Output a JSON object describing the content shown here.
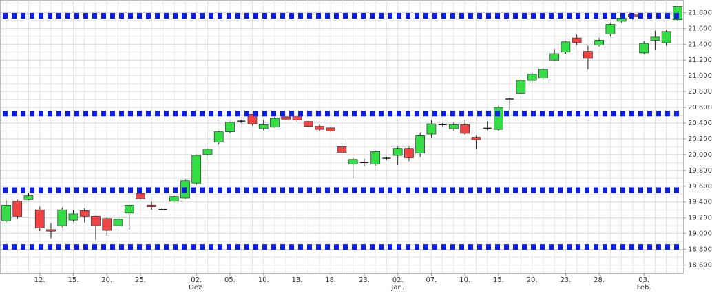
{
  "chart_data": {
    "type": "candlestick",
    "categories": [
      null,
      null,
      null,
      "12.",
      null,
      null,
      "15.",
      null,
      null,
      "20.",
      null,
      null,
      "25.",
      null,
      null,
      null,
      null,
      "02.",
      null,
      null,
      "05.",
      null,
      null,
      "10.",
      null,
      null,
      "13.",
      null,
      null,
      "18.",
      null,
      null,
      "23.",
      null,
      null,
      "02.",
      null,
      null,
      "07.",
      null,
      null,
      "10.",
      null,
      null,
      "15.",
      null,
      null,
      "20.",
      null,
      null,
      "23.",
      null,
      null,
      "28.",
      null,
      null,
      null,
      "03.",
      null,
      null,
      null
    ],
    "months": [
      null,
      null,
      null,
      null,
      null,
      null,
      null,
      null,
      null,
      null,
      null,
      null,
      null,
      null,
      null,
      null,
      null,
      "Dez.",
      null,
      null,
      null,
      null,
      null,
      null,
      null,
      null,
      null,
      null,
      null,
      null,
      null,
      null,
      null,
      null,
      null,
      "Jan.",
      null,
      null,
      null,
      null,
      null,
      null,
      null,
      null,
      null,
      null,
      null,
      null,
      null,
      null,
      null,
      null,
      null,
      null,
      null,
      null,
      null,
      "Feb.",
      null,
      null,
      null
    ],
    "open": [
      19.16,
      19.41,
      19.43,
      19.3,
      19.05,
      19.1,
      19.17,
      19.29,
      19.22,
      19.19,
      19.1,
      19.26,
      19.51,
      19.36,
      19.31,
      19.41,
      19.45,
      19.64,
      20.0,
      20.16,
      20.29,
      20.42,
      20.51,
      20.33,
      20.35,
      20.48,
      20.49,
      20.42,
      20.36,
      20.34,
      20.1,
      19.88,
      19.9,
      19.88,
      19.95,
      19.99,
      20.08,
      20.02,
      20.26,
      20.38,
      20.33,
      20.38,
      20.22,
      20.33,
      20.32,
      20.7,
      20.78,
      20.94,
      20.97,
      21.2,
      21.3,
      21.48,
      21.31,
      21.39,
      21.53,
      21.69,
      21.78,
      21.29,
      21.45,
      21.42,
      21.71
    ],
    "high": [
      19.42,
      19.43,
      19.52,
      19.34,
      19.13,
      19.33,
      19.3,
      19.32,
      19.23,
      19.2,
      19.19,
      19.38,
      19.53,
      19.4,
      19.33,
      19.48,
      19.69,
      20.0,
      20.08,
      20.3,
      20.42,
      20.44,
      20.51,
      20.44,
      20.48,
      20.49,
      20.5,
      20.43,
      20.38,
      20.36,
      20.17,
      19.96,
      19.95,
      20.05,
      19.97,
      20.1,
      20.1,
      20.28,
      20.44,
      20.4,
      20.41,
      20.44,
      20.24,
      20.42,
      20.62,
      20.72,
      20.95,
      21.05,
      21.09,
      21.34,
      21.44,
      21.52,
      21.38,
      21.48,
      21.67,
      21.77,
      21.79,
      21.44,
      21.57,
      21.58,
      21.89
    ],
    "low": [
      19.14,
      19.18,
      19.42,
      19.03,
      18.94,
      19.08,
      19.15,
      19.14,
      18.92,
      18.97,
      18.96,
      19.05,
      19.43,
      19.3,
      19.17,
      19.4,
      19.44,
      19.62,
      19.99,
      20.13,
      20.27,
      20.4,
      20.37,
      20.31,
      20.34,
      20.44,
      20.41,
      20.35,
      20.3,
      20.29,
      20.01,
      19.7,
      19.85,
      19.86,
      19.93,
      19.87,
      19.92,
      19.97,
      20.22,
      20.36,
      20.3,
      20.25,
      20.07,
      20.31,
      20.3,
      20.56,
      20.76,
      20.91,
      20.96,
      21.19,
      21.28,
      21.39,
      21.08,
      21.37,
      21.5,
      21.67,
      21.71,
      21.27,
      21.33,
      21.38,
      21.7
    ],
    "close": [
      19.36,
      19.22,
      19.48,
      19.07,
      19.03,
      19.3,
      19.25,
      19.22,
      19.1,
      19.04,
      19.18,
      19.36,
      19.44,
      19.34,
      19.3,
      19.47,
      19.67,
      19.99,
      20.07,
      20.29,
      20.41,
      20.43,
      20.39,
      20.38,
      20.46,
      20.45,
      20.44,
      20.36,
      20.32,
      20.3,
      20.03,
      19.94,
      19.9,
      20.04,
      19.96,
      20.08,
      19.96,
      20.24,
      20.39,
      20.38,
      20.38,
      20.27,
      20.19,
      20.34,
      20.6,
      20.71,
      20.94,
      21.02,
      21.08,
      21.28,
      21.43,
      21.42,
      21.22,
      21.45,
      21.65,
      21.73,
      21.75,
      21.41,
      21.49,
      21.56,
      21.88
    ],
    "up_color": "#33dd44",
    "down_color": "#ee4444",
    "level_color": "#0a1ee6",
    "levels": [
      21.76,
      20.52,
      19.55,
      18.83
    ],
    "ylim": [
      18.5,
      21.96
    ],
    "yticks": [
      {
        "value": 18.6,
        "label": "18.600"
      },
      {
        "value": 18.8,
        "label": "18.800"
      },
      {
        "value": 19.0,
        "label": "19.000"
      },
      {
        "value": 19.2,
        "label": "19.200"
      },
      {
        "value": 19.4,
        "label": "19.400"
      },
      {
        "value": 19.6,
        "label": "19.600"
      },
      {
        "value": 19.8,
        "label": "19.800"
      },
      {
        "value": 20.0,
        "label": "20.000"
      },
      {
        "value": 20.2,
        "label": "20.200"
      },
      {
        "value": 20.4,
        "label": "20.400"
      },
      {
        "value": 20.6,
        "label": "20.600"
      },
      {
        "value": 20.8,
        "label": "20.800"
      },
      {
        "value": 21.0,
        "label": "21.000"
      },
      {
        "value": 21.2,
        "label": "21.200"
      },
      {
        "value": 21.4,
        "label": "21.400"
      },
      {
        "value": 21.6,
        "label": "21.600"
      },
      {
        "value": 21.8,
        "label": "21.800"
      }
    ],
    "grid": true
  }
}
